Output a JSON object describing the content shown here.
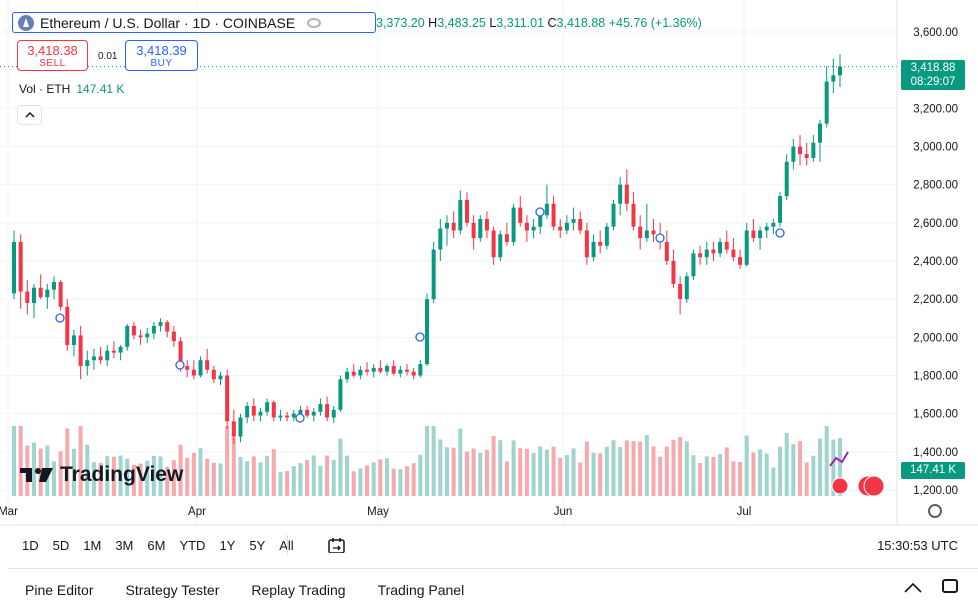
{
  "symbol": {
    "title": "Ethereum / U.S. Dollar · 1D · COINBASE",
    "icon": "ethereum-icon"
  },
  "ohlc": {
    "o_value": "3,373.20",
    "h_label": "H",
    "h_value": "3,483.25",
    "l_label": "L",
    "l_value": "3,311.01",
    "c_label": "C",
    "c_value": "3,418.88",
    "change": "+45.76 (+1.36%)"
  },
  "trade": {
    "sell_price": "3,418.38",
    "sell_label": "SELL",
    "spread": "0.01",
    "buy_price": "3,418.39",
    "buy_label": "BUY"
  },
  "volume": {
    "label": "Vol · ETH",
    "value": "147.41 K"
  },
  "logo_text": "TradingView",
  "last_price": {
    "value": "3,418.88",
    "countdown": "08:29:07"
  },
  "volume_tag": "147.41 K",
  "range_buttons": [
    "1D",
    "5D",
    "1M",
    "3M",
    "6M",
    "YTD",
    "1Y",
    "5Y",
    "All"
  ],
  "clock": "15:30:53 UTC",
  "bottom_tabs": [
    "Pine Editor",
    "Strategy Tester",
    "Replay Trading",
    "Trading Panel"
  ],
  "colors": {
    "up": "#089981",
    "down": "#f23645",
    "up_vol": "#9fd5cd",
    "down_vol": "#f7a9ae",
    "accent": "#2962ff"
  },
  "chart_data": {
    "type": "candlestick",
    "x_tick_labels": [
      "Mar",
      "Apr",
      "May",
      "Jun",
      "Jul"
    ],
    "y_tick_labels": [
      "3,600.00",
      "3,400.00",
      "3,200.00",
      "3,000.00",
      "2,800.00",
      "2,600.00",
      "2,400.00",
      "2,200.00",
      "2,000.00",
      "1,800.00",
      "1,600.00",
      "1,400.00",
      "1,200.00"
    ],
    "ylim": [
      1130,
      3650
    ],
    "grid": true,
    "last_close": 3418.88,
    "series": [
      {
        "name": "ETH/USD",
        "ohlc_approx": [
          [
            2230,
            2560,
            2200,
            2500
          ],
          [
            2500,
            2540,
            2150,
            2240
          ],
          [
            2240,
            2300,
            2120,
            2180
          ],
          [
            2180,
            2280,
            2100,
            2260
          ],
          [
            2260,
            2330,
            2200,
            2210
          ],
          [
            2210,
            2280,
            2150,
            2250
          ],
          [
            2250,
            2320,
            2200,
            2290
          ],
          [
            2290,
            2300,
            2140,
            2160
          ],
          [
            2160,
            2200,
            1930,
            1960
          ],
          [
            1960,
            2040,
            1900,
            2010
          ],
          [
            2010,
            2060,
            1780,
            1850
          ],
          [
            1850,
            1930,
            1800,
            1880
          ],
          [
            1880,
            1940,
            1830,
            1900
          ],
          [
            1900,
            1950,
            1860,
            1880
          ],
          [
            1880,
            1960,
            1850,
            1930
          ],
          [
            1930,
            1980,
            1890,
            1920
          ],
          [
            1920,
            1960,
            1880,
            1950
          ],
          [
            1950,
            2070,
            1930,
            2060
          ],
          [
            2060,
            2080,
            1990,
            2010
          ],
          [
            2010,
            2040,
            1960,
            2000
          ],
          [
            2000,
            2050,
            1970,
            2020
          ],
          [
            2020,
            2080,
            1990,
            2060
          ],
          [
            2060,
            2100,
            2030,
            2080
          ],
          [
            2080,
            2090,
            2000,
            2030
          ],
          [
            2030,
            2060,
            1950,
            1980
          ],
          [
            1980,
            2000,
            1820,
            1850
          ],
          [
            1850,
            1880,
            1790,
            1830
          ],
          [
            1830,
            1880,
            1780,
            1800
          ],
          [
            1800,
            1900,
            1790,
            1880
          ],
          [
            1880,
            1940,
            1810,
            1830
          ],
          [
            1830,
            1850,
            1760,
            1780
          ],
          [
            1780,
            1820,
            1750,
            1800
          ],
          [
            1800,
            1830,
            1520,
            1560
          ],
          [
            1560,
            1620,
            1440,
            1480
          ],
          [
            1480,
            1600,
            1450,
            1580
          ],
          [
            1580,
            1660,
            1550,
            1640
          ],
          [
            1640,
            1680,
            1560,
            1590
          ],
          [
            1590,
            1630,
            1560,
            1610
          ],
          [
            1610,
            1680,
            1590,
            1660
          ],
          [
            1660,
            1670,
            1560,
            1580
          ],
          [
            1580,
            1620,
            1560,
            1590
          ],
          [
            1590,
            1610,
            1560,
            1580
          ],
          [
            1580,
            1620,
            1560,
            1600
          ],
          [
            1600,
            1640,
            1580,
            1620
          ],
          [
            1620,
            1640,
            1580,
            1590
          ],
          [
            1590,
            1630,
            1560,
            1610
          ],
          [
            1610,
            1680,
            1590,
            1650
          ],
          [
            1650,
            1690,
            1560,
            1580
          ],
          [
            1580,
            1640,
            1550,
            1620
          ],
          [
            1620,
            1800,
            1610,
            1780
          ],
          [
            1780,
            1840,
            1760,
            1820
          ],
          [
            1820,
            1860,
            1790,
            1800
          ],
          [
            1800,
            1850,
            1780,
            1830
          ],
          [
            1830,
            1870,
            1800,
            1820
          ],
          [
            1820,
            1860,
            1790,
            1840
          ],
          [
            1840,
            1880,
            1810,
            1820
          ],
          [
            1820,
            1860,
            1800,
            1850
          ],
          [
            1850,
            1880,
            1800,
            1810
          ],
          [
            1810,
            1850,
            1790,
            1830
          ],
          [
            1830,
            1860,
            1800,
            1820
          ],
          [
            1820,
            1840,
            1780,
            1800
          ],
          [
            1800,
            1880,
            1790,
            1860
          ],
          [
            1860,
            2230,
            1850,
            2200
          ],
          [
            2200,
            2500,
            2180,
            2460
          ],
          [
            2460,
            2620,
            2400,
            2570
          ],
          [
            2570,
            2640,
            2480,
            2600
          ],
          [
            2600,
            2660,
            2520,
            2560
          ],
          [
            2560,
            2770,
            2540,
            2720
          ],
          [
            2720,
            2760,
            2580,
            2600
          ],
          [
            2600,
            2640,
            2460,
            2520
          ],
          [
            2520,
            2640,
            2500,
            2620
          ],
          [
            2620,
            2660,
            2520,
            2560
          ],
          [
            2560,
            2580,
            2380,
            2420
          ],
          [
            2420,
            2560,
            2400,
            2540
          ],
          [
            2540,
            2600,
            2480,
            2500
          ],
          [
            2500,
            2700,
            2480,
            2680
          ],
          [
            2680,
            2740,
            2580,
            2600
          ],
          [
            2600,
            2640,
            2500,
            2560
          ],
          [
            2560,
            2620,
            2520,
            2580
          ],
          [
            2580,
            2660,
            2540,
            2640
          ],
          [
            2640,
            2800,
            2620,
            2700
          ],
          [
            2700,
            2740,
            2560,
            2580
          ],
          [
            2580,
            2620,
            2520,
            2560
          ],
          [
            2560,
            2640,
            2540,
            2600
          ],
          [
            2600,
            2680,
            2560,
            2620
          ],
          [
            2620,
            2660,
            2540,
            2560
          ],
          [
            2560,
            2600,
            2380,
            2420
          ],
          [
            2420,
            2540,
            2400,
            2500
          ],
          [
            2500,
            2560,
            2440,
            2480
          ],
          [
            2480,
            2600,
            2460,
            2580
          ],
          [
            2580,
            2720,
            2560,
            2700
          ],
          [
            2700,
            2840,
            2640,
            2800
          ],
          [
            2800,
            2880,
            2660,
            2700
          ],
          [
            2700,
            2760,
            2560,
            2580
          ],
          [
            2580,
            2640,
            2460,
            2520
          ],
          [
            2520,
            2700,
            2500,
            2560
          ],
          [
            2560,
            2620,
            2500,
            2540
          ],
          [
            2540,
            2600,
            2460,
            2500
          ],
          [
            2500,
            2560,
            2380,
            2400
          ],
          [
            2400,
            2460,
            2260,
            2280
          ],
          [
            2280,
            2320,
            2120,
            2200
          ],
          [
            2200,
            2340,
            2180,
            2320
          ],
          [
            2320,
            2460,
            2300,
            2440
          ],
          [
            2440,
            2480,
            2380,
            2420
          ],
          [
            2420,
            2500,
            2380,
            2460
          ],
          [
            2460,
            2500,
            2400,
            2440
          ],
          [
            2440,
            2520,
            2420,
            2500
          ],
          [
            2500,
            2560,
            2440,
            2460
          ],
          [
            2460,
            2520,
            2400,
            2420
          ],
          [
            2420,
            2460,
            2360,
            2380
          ],
          [
            2380,
            2600,
            2370,
            2560
          ],
          [
            2560,
            2620,
            2500,
            2520
          ],
          [
            2520,
            2580,
            2460,
            2560
          ],
          [
            2560,
            2600,
            2520,
            2580
          ],
          [
            2580,
            2620,
            2540,
            2600
          ],
          [
            2600,
            2760,
            2580,
            2740
          ],
          [
            2740,
            2960,
            2720,
            2920
          ],
          [
            2920,
            3040,
            2880,
            3000
          ],
          [
            3000,
            3060,
            2900,
            2960
          ],
          [
            2960,
            3020,
            2900,
            2940
          ],
          [
            2940,
            3060,
            2920,
            3020
          ],
          [
            3020,
            3140,
            2920,
            3120
          ],
          [
            3120,
            3420,
            3100,
            3340
          ],
          [
            3340,
            3460,
            3280,
            3373
          ],
          [
            3373,
            3483,
            3311,
            3418.88
          ]
        ]
      }
    ]
  }
}
